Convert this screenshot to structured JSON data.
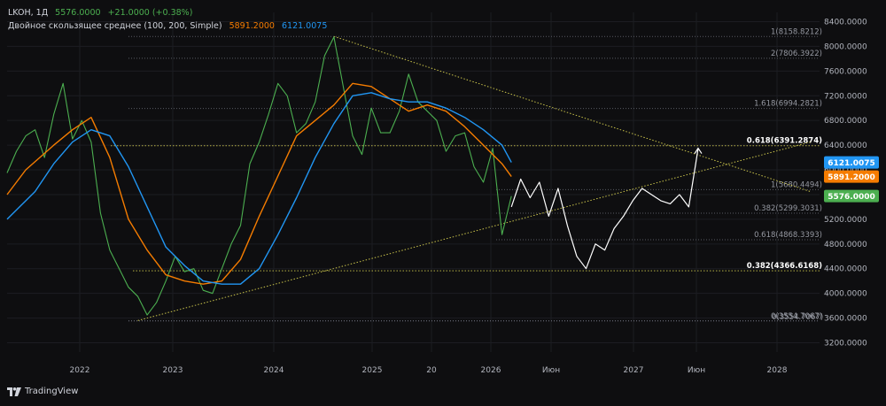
{
  "header": {
    "symbol": "LKOH, 1Д",
    "last_price": "5576.0000",
    "change": "+21.0000 (+0.38%)",
    "ma_label": "Двойное скользящее среднее (100, 200, Simple)",
    "ma_fast": "5891.2000",
    "ma_slow": "6121.0075"
  },
  "colors": {
    "background": "#0e0e10",
    "price": "#4caf50",
    "ma_fast": "#f57c00",
    "ma_slow": "#2196f3",
    "projection": "#ffffff",
    "triangle": "#c8c24a",
    "fib_level": "#787b86",
    "fib_key": "#c8c24a",
    "last_price_badge": "#4caf50",
    "ma_fast_badge": "#f57c00",
    "ma_slow_badge": "#2196f3"
  },
  "branding": {
    "name": "TradingView"
  },
  "chart_data": {
    "type": "line",
    "y_axis_ticks": [
      "8400.0000",
      "8000.0000",
      "7600.0000",
      "7200.0000",
      "6800.0000",
      "6400.0000",
      "6000.0000",
      "5600.0000",
      "5200.0000",
      "4800.0000",
      "4400.0000",
      "4000.0000",
      "3600.0000",
      "3200.0000"
    ],
    "x_axis_ticks": [
      "2022",
      "2023",
      "2024",
      "2025",
      "20",
      "2026",
      "Июн",
      "2027",
      "Июн",
      "2028"
    ],
    "ylim": [
      3050,
      8550
    ],
    "price_badges": [
      {
        "label": "6121.0075",
        "value": 6121,
        "series": "ma_slow"
      },
      {
        "label": "5891.2000",
        "value": 5891.2,
        "series": "ma_fast"
      },
      {
        "label": "5576.0000",
        "value": 5576,
        "series": "price"
      }
    ],
    "fib_levels": [
      {
        "label": "1(8158.8212)",
        "value": 8158.8212,
        "key": false
      },
      {
        "label": "2(7806.3922)",
        "value": 7806.3922,
        "key": false
      },
      {
        "label": "1.618(6994.2821)",
        "value": 6994.2821,
        "key": false
      },
      {
        "label": "0.618(6391.2874)",
        "value": 6391.2874,
        "key": true
      },
      {
        "label": "1(5680.4494)",
        "value": 5680.4494,
        "key": false
      },
      {
        "label": "0.382(5299.3031)",
        "value": 5299.3031,
        "key": false
      },
      {
        "label": "0.618(4868.3393)",
        "value": 4868.3393,
        "key": false
      },
      {
        "label": "0.382(4366.6168)",
        "value": 4366.6168,
        "key": true
      },
      {
        "label": "0(3554.7067)",
        "value": 3554.7067,
        "key": false
      },
      {
        "label": "0(3554.7067)",
        "value": 3554.7067,
        "key": false
      }
    ],
    "series": [
      {
        "key": "price",
        "x": [
          "2021-05",
          "2021-06",
          "2021-07",
          "2021-08",
          "2021-09",
          "2021-10",
          "2021-11",
          "2021-12",
          "2022-01",
          "2022-02",
          "2022-03",
          "2022-04",
          "2022-05",
          "2022-06",
          "2022-07",
          "2022-08",
          "2022-09",
          "2022-10",
          "2022-11",
          "2022-12",
          "2023-01",
          "2023-02",
          "2023-03",
          "2023-04",
          "2023-05",
          "2023-06",
          "2023-07",
          "2023-08",
          "2023-09",
          "2023-10",
          "2023-11",
          "2023-12",
          "2024-01",
          "2024-02",
          "2024-03",
          "2024-04",
          "2024-05",
          "2024-06",
          "2024-07",
          "2024-08",
          "2024-09",
          "2024-10",
          "2024-11",
          "2024-12",
          "2025-01",
          "2025-02",
          "2025-03",
          "2025-04",
          "2025-05",
          "2025-06",
          "2025-07",
          "2025-08",
          "2025-09",
          "2025-10",
          "2025-11"
        ],
        "values": [
          5950,
          6300,
          6550,
          6650,
          6200,
          6900,
          7400,
          6500,
          6800,
          6450,
          5300,
          4700,
          4400,
          4100,
          3950,
          3650,
          3850,
          4200,
          4600,
          4350,
          4400,
          4050,
          4000,
          4400,
          4800,
          5100,
          6100,
          6450,
          6900,
          7400,
          7200,
          6600,
          6750,
          7100,
          7850,
          8150,
          7350,
          6550,
          6250,
          7000,
          6600,
          6600,
          6950,
          7550,
          7100,
          6950,
          6800,
          6300,
          6550,
          6600,
          6050,
          5800,
          6350,
          4950,
          5576
        ]
      },
      {
        "key": "ma_fast",
        "x": [
          "2021-05",
          "2021-07",
          "2021-10",
          "2021-12",
          "2022-02",
          "2022-04",
          "2022-06",
          "2022-08",
          "2022-10",
          "2022-12",
          "2023-02",
          "2023-04",
          "2023-06",
          "2023-08",
          "2023-10",
          "2023-12",
          "2024-02",
          "2024-04",
          "2024-06",
          "2024-08",
          "2024-10",
          "2024-12",
          "2025-02",
          "2025-04",
          "2025-06",
          "2025-08",
          "2025-10",
          "2025-11"
        ],
        "values": [
          5600,
          6000,
          6400,
          6650,
          6850,
          6200,
          5200,
          4700,
          4300,
          4200,
          4150,
          4200,
          4550,
          5250,
          5900,
          6550,
          6800,
          7050,
          7400,
          7350,
          7150,
          6950,
          7050,
          6950,
          6700,
          6400,
          6100,
          5891.2
        ]
      },
      {
        "key": "ma_slow",
        "x": [
          "2021-05",
          "2021-08",
          "2021-10",
          "2021-12",
          "2022-02",
          "2022-04",
          "2022-06",
          "2022-08",
          "2022-10",
          "2022-12",
          "2023-02",
          "2023-04",
          "2023-06",
          "2023-08",
          "2023-10",
          "2023-12",
          "2024-02",
          "2024-04",
          "2024-06",
          "2024-08",
          "2024-10",
          "2024-12",
          "2025-02",
          "2025-04",
          "2025-06",
          "2025-08",
          "2025-10",
          "2025-11"
        ],
        "values": [
          5200,
          5650,
          6100,
          6450,
          6650,
          6550,
          6050,
          5400,
          4750,
          4450,
          4200,
          4150,
          4150,
          4400,
          4950,
          5550,
          6200,
          6750,
          7200,
          7250,
          7150,
          7100,
          7100,
          7000,
          6850,
          6650,
          6400,
          6121
        ]
      },
      {
        "key": "projection",
        "x": [
          "2025-11",
          "2025-12",
          "2026-01",
          "2026-02",
          "2026-03",
          "2026-04",
          "2026-05",
          "2026-06",
          "2026-07",
          "2026-08",
          "2026-09",
          "2026-10",
          "2026-11",
          "2026-12",
          "2027-01",
          "2027-02",
          "2027-03",
          "2027-04",
          "2027-05",
          "2027-06",
          "2027-07"
        ],
        "values": [
          5400,
          5850,
          5550,
          5800,
          5250,
          5700,
          5100,
          4600,
          4400,
          4800,
          4700,
          5050,
          5250,
          5500,
          5700,
          5600,
          5500,
          5450,
          5600,
          5400,
          6350
        ]
      },
      {
        "key": "triangle-upper",
        "x": [
          "2024-04",
          "2028-07"
        ],
        "values": [
          8160,
          5650
        ]
      },
      {
        "key": "triangle-lower",
        "x": [
          "2022-07",
          "2028-07"
        ],
        "values": [
          3560,
          6450
        ]
      }
    ]
  }
}
